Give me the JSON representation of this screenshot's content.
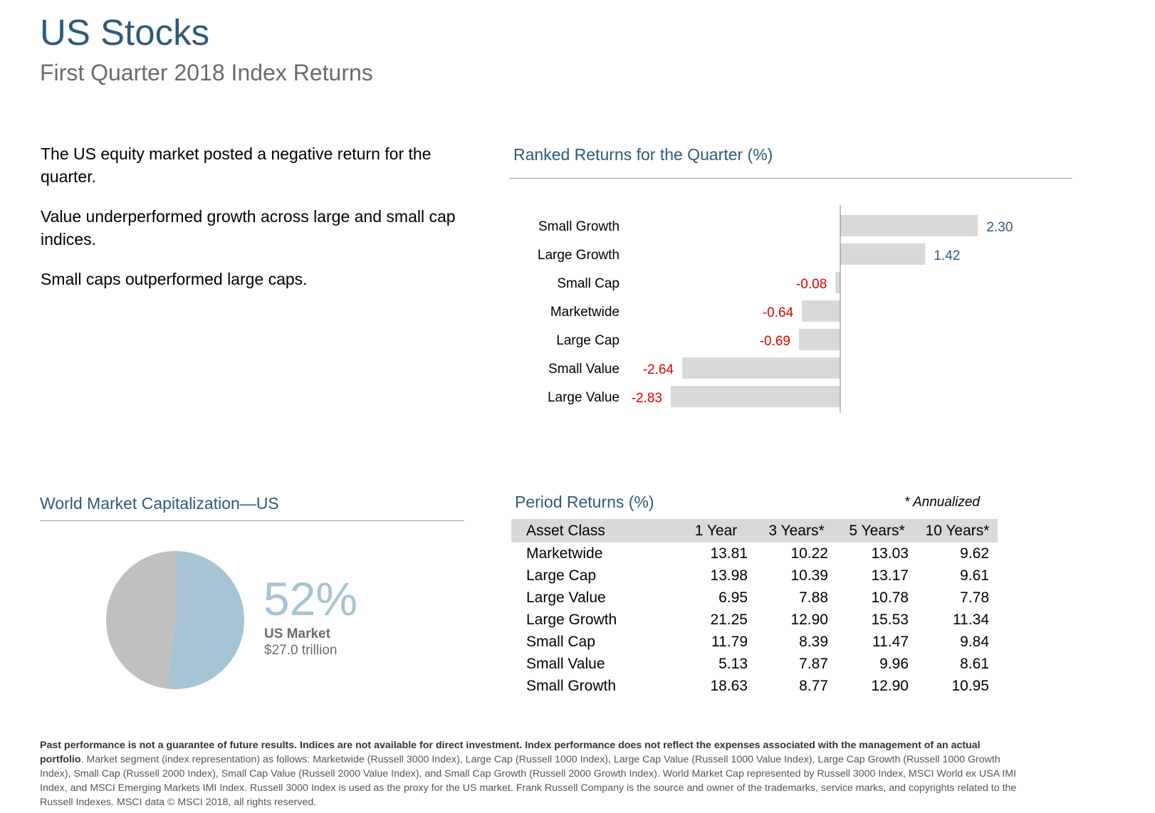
{
  "header": {
    "title": "US Stocks",
    "subtitle": "First Quarter 2018 Index Returns"
  },
  "bullets": [
    "The US equity market posted a negative return for the quarter.",
    "Value underperformed growth across large and small cap indices.",
    "Small caps outperformed large caps."
  ],
  "ranked": {
    "title": "Ranked Returns for the Quarter (%)"
  },
  "chart_data": [
    {
      "type": "bar",
      "orientation": "horizontal",
      "title": "Ranked Returns for the Quarter (%)",
      "categories": [
        "Small Growth",
        "Large Growth",
        "Small Cap",
        "Marketwide",
        "Large Cap",
        "Small Value",
        "Large Value"
      ],
      "values": [
        2.3,
        1.42,
        -0.08,
        -0.64,
        -0.69,
        -2.64,
        -2.83
      ],
      "value_labels": [
        "2.30",
        "1.42",
        "-0.08",
        "-0.64",
        "-0.69",
        "-2.64",
        "-2.83"
      ],
      "xlim": [
        -2.83,
        2.3
      ],
      "colors": {
        "bar": "#d9d9d9",
        "positive_label": "#2e5a7a",
        "negative_label": "#e00000",
        "axis": "#808080"
      }
    },
    {
      "type": "pie",
      "title": "World Market Capitalization—US",
      "slices": [
        {
          "name": "US Market",
          "value": 52,
          "color": "#a6c4d1"
        },
        {
          "name": "",
          "value": 48,
          "color": "#c0c0c0"
        }
      ]
    }
  ],
  "world_cap": {
    "title": "World Market Capitalization—US",
    "pct": "52%",
    "label": "US Market",
    "value": "$27.0 trillion"
  },
  "period": {
    "title": "Period Returns (%)",
    "note": "* Annualized",
    "headers": [
      "Asset Class",
      "1 Year",
      "3 Years*",
      "5 Years*",
      "10 Years*"
    ],
    "rows": [
      [
        "Marketwide",
        "13.81",
        "10.22",
        "13.03",
        "9.62"
      ],
      [
        "Large Cap",
        "13.98",
        "10.39",
        "13.17",
        "9.61"
      ],
      [
        "Large Value",
        "6.95",
        "7.88",
        "10.78",
        "7.78"
      ],
      [
        "Large Growth",
        "21.25",
        "12.90",
        "15.53",
        "11.34"
      ],
      [
        "Small Cap",
        "11.79",
        "8.39",
        "11.47",
        "9.84"
      ],
      [
        "Small Value",
        "5.13",
        "7.87",
        "9.96",
        "8.61"
      ],
      [
        "Small Growth",
        "18.63",
        "8.77",
        "12.90",
        "10.95"
      ]
    ]
  },
  "footnote": {
    "bold": "Past performance is not a guarantee of future results. Indices are not available for direct investment. Index performance does not reflect the expenses associated with the management of an actual portfolio",
    "text": ". Market segment (index representation) as follows: Marketwide (Russell 3000 Index), Large Cap (Russell 1000 Index), Large Cap Value (Russell 1000 Value Index), Large Cap Growth (Russell 1000 Growth Index), Small Cap (Russell 2000 Index), Small Cap Value (Russell 2000 Value Index), and Small Cap Growth (Russell 2000 Growth Index). World Market Cap represented by Russell 3000 Index, MSCI World ex USA IMI Index, and MSCI Emerging Markets IMI Index. Russell 3000 Index is used as the proxy for the US market. Frank Russell Company is the source and owner of the trademarks, service marks, and copyrights related to the Russell Indexes. MSCI data © MSCI 2018, all rights reserved."
  }
}
